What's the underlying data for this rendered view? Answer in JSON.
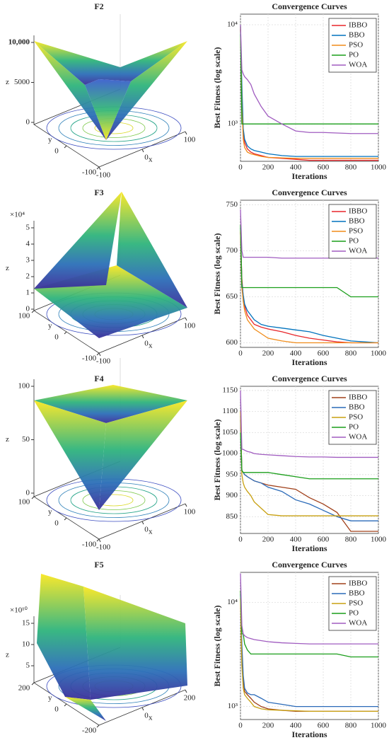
{
  "chart_data": [
    {
      "type": "surface",
      "title": "F2",
      "xlabel": "x",
      "ylabel": "y",
      "zlabel": "z",
      "zlim": [
        0,
        10000
      ],
      "zticks": [
        0,
        5000,
        {
          "value": 10000,
          "label": "10,000"
        }
      ],
      "xticks": [
        -100,
        0,
        100
      ],
      "yticks": [
        -100,
        0
      ]
    },
    {
      "type": "line",
      "title": "Convergence Curves",
      "xlabel": "Iterations",
      "ylabel": "Best Fitness (log scale)",
      "log_y": true,
      "grid": true,
      "legend": "upper right",
      "x": [
        0,
        10,
        20,
        30,
        50,
        75,
        100,
        150,
        200,
        300,
        400,
        500,
        600,
        700,
        800,
        900,
        1000
      ],
      "xlim": [
        0,
        1000
      ],
      "xticks": [
        0,
        200,
        400,
        600,
        800,
        1000
      ],
      "ylim": [
        420,
        12800
      ],
      "yticks": [
        {
          "value": 1000,
          "label": "10³"
        },
        {
          "value": 10000,
          "label": "10⁴"
        }
      ],
      "series": [
        {
          "name": "IBBO",
          "color": "#e8262a",
          "values": [
            9000,
            2000,
            800,
            650,
            560,
            520,
            500,
            480,
            460,
            450,
            440,
            430,
            430,
            430,
            430,
            430,
            430
          ]
        },
        {
          "name": "BBO",
          "color": "#0072bd",
          "values": [
            8000,
            2500,
            900,
            700,
            600,
            560,
            540,
            520,
            500,
            480,
            470,
            470,
            470,
            470,
            470,
            470,
            470
          ]
        },
        {
          "name": "PSO",
          "color": "#f08c1a",
          "values": [
            9500,
            1500,
            700,
            580,
            520,
            500,
            490,
            470,
            460,
            455,
            450,
            450,
            450,
            450,
            450,
            450,
            450
          ]
        },
        {
          "name": "PO",
          "color": "#1a9e1a",
          "values": [
            9800,
            1000,
            1000,
            1000,
            1000,
            1000,
            1000,
            1000,
            1000,
            1000,
            1000,
            1000,
            1000,
            1000,
            1000,
            1000,
            1000
          ]
        },
        {
          "name": "WOA",
          "color": "#a05cc0",
          "values": [
            10000,
            3500,
            3200,
            3000,
            2800,
            2500,
            2000,
            1500,
            1200,
            1000,
            850,
            820,
            820,
            810,
            800,
            800,
            800
          ]
        }
      ]
    },
    {
      "type": "surface",
      "title": "F3",
      "xlabel": "x",
      "ylabel": "y",
      "zlabel": "z",
      "scale_label": "×10⁴",
      "zlim": [
        0,
        5
      ],
      "zticks": [
        0,
        1,
        2,
        3,
        4,
        5
      ],
      "xticks": [
        -100,
        0,
        100
      ],
      "yticks": [
        -100,
        0,
        100
      ]
    },
    {
      "type": "line",
      "title": "Convergence Curves",
      "xlabel": "Iterations",
      "ylabel": "Best Fitness (log scale)",
      "log_y": false,
      "grid": true,
      "legend": "upper right",
      "x": [
        0,
        10,
        20,
        30,
        50,
        75,
        100,
        150,
        200,
        300,
        400,
        500,
        600,
        700,
        800,
        900,
        1000
      ],
      "xlim": [
        0,
        1000
      ],
      "xticks": [
        0,
        200,
        400,
        600,
        800,
        1000
      ],
      "ylim": [
        595,
        755
      ],
      "yticks": [
        600,
        650,
        700,
        750
      ],
      "series": [
        {
          "name": "IBBO",
          "color": "#e8262a",
          "values": [
            720,
            670,
            650,
            640,
            630,
            625,
            620,
            617,
            615,
            612,
            608,
            605,
            603,
            601,
            600,
            600,
            600
          ]
        },
        {
          "name": "BBO",
          "color": "#0072bd",
          "values": [
            725,
            665,
            652,
            642,
            635,
            630,
            625,
            620,
            618,
            616,
            614,
            612,
            608,
            605,
            602,
            601,
            600
          ]
        },
        {
          "name": "PSO",
          "color": "#f08c1a",
          "values": [
            722,
            660,
            645,
            635,
            625,
            620,
            615,
            610,
            605,
            602,
            600,
            600,
            600,
            600,
            600,
            600,
            600
          ]
        },
        {
          "name": "PO",
          "color": "#1a9e1a",
          "values": [
            728,
            660,
            660,
            660,
            660,
            660,
            660,
            660,
            660,
            660,
            660,
            660,
            660,
            660,
            650,
            650,
            650
          ]
        },
        {
          "name": "WOA",
          "color": "#a05cc0",
          "values": [
            745,
            700,
            693,
            693,
            693,
            693,
            693,
            693,
            693,
            692,
            692,
            692,
            692,
            692,
            692,
            692,
            692
          ]
        }
      ]
    },
    {
      "type": "surface",
      "title": "F4",
      "xlabel": "x",
      "ylabel": "y",
      "zlabel": "z",
      "zlim": [
        0,
        100
      ],
      "zticks": [
        0,
        50,
        100
      ],
      "xticks": [
        -100,
        0,
        100
      ],
      "yticks": [
        -100,
        0,
        100
      ]
    },
    {
      "type": "line",
      "title": "Convergence Curves",
      "xlabel": "Iterations",
      "ylabel": "Best Fitness (log scale)",
      "log_y": false,
      "grid": true,
      "legend": "upper right",
      "x": [
        0,
        10,
        20,
        30,
        50,
        75,
        100,
        150,
        200,
        300,
        400,
        500,
        600,
        700,
        800,
        900,
        1000
      ],
      "xlim": [
        0,
        1000
      ],
      "xticks": [
        0,
        200,
        400,
        600,
        800,
        1000
      ],
      "ylim": [
        810,
        1160
      ],
      "yticks": [
        850,
        900,
        950,
        1000,
        1050,
        1100,
        1150
      ],
      "series": [
        {
          "name": "IBBO",
          "color": "#a0401a",
          "values": [
            1080,
            960,
            955,
            950,
            945,
            940,
            935,
            930,
            925,
            920,
            915,
            895,
            880,
            860,
            815,
            815,
            815
          ]
        },
        {
          "name": "BBO",
          "color": "#2a6ab8",
          "values": [
            1090,
            960,
            955,
            950,
            945,
            940,
            935,
            930,
            920,
            910,
            890,
            880,
            865,
            850,
            840,
            840,
            840
          ]
        },
        {
          "name": "PSO",
          "color": "#c8a010",
          "values": [
            1100,
            950,
            930,
            920,
            910,
            900,
            885,
            870,
            855,
            852,
            852,
            852,
            852,
            852,
            852,
            852,
            852
          ]
        },
        {
          "name": "PO",
          "color": "#1a9e1a",
          "values": [
            1050,
            960,
            955,
            955,
            955,
            955,
            955,
            955,
            955,
            950,
            945,
            940,
            940,
            940,
            940,
            940,
            940
          ]
        },
        {
          "name": "WOA",
          "color": "#a05cc0",
          "values": [
            1150,
            1010,
            1010,
            1008,
            1005,
            1003,
            1000,
            998,
            997,
            995,
            993,
            992,
            992,
            991,
            991,
            991,
            991
          ]
        }
      ]
    },
    {
      "type": "surface",
      "title": "F5",
      "xlabel": "x",
      "ylabel": "y",
      "zlabel": "z",
      "scale_label": "×10¹⁰",
      "zlim": [
        0,
        15
      ],
      "zticks": [
        5,
        10,
        15
      ],
      "xticks": [
        0,
        200
      ],
      "yticks": [
        -200,
        0,
        200
      ]
    },
    {
      "type": "line",
      "title": "Convergence Curves",
      "xlabel": "Iterations",
      "ylabel": "Best Fitness (log scale)",
      "log_y": true,
      "grid": true,
      "legend": "upper right",
      "x": [
        0,
        10,
        20,
        30,
        50,
        75,
        100,
        150,
        200,
        300,
        400,
        500,
        600,
        700,
        800,
        900,
        1000
      ],
      "xlim": [
        0,
        1000
      ],
      "xticks": [
        0,
        200,
        400,
        600,
        800,
        1000
      ],
      "ylim": [
        750,
        19500
      ],
      "yticks": [
        {
          "value": 1000,
          "label": "10³"
        },
        {
          "value": 10000,
          "label": "10⁴"
        }
      ],
      "series": [
        {
          "name": "IBBO",
          "color": "#a0401a",
          "values": [
            13000,
            3000,
            1800,
            1400,
            1300,
            1200,
            1100,
            1000,
            950,
            920,
            900,
            900,
            900,
            900,
            900,
            900,
            900
          ]
        },
        {
          "name": "BBO",
          "color": "#2a6ab8",
          "values": [
            12000,
            4000,
            2000,
            1500,
            1350,
            1300,
            1300,
            1200,
            1100,
            1050,
            1000,
            1000,
            1000,
            1000,
            1000,
            1000,
            1000
          ]
        },
        {
          "name": "PSO",
          "color": "#c8a010",
          "values": [
            11000,
            2500,
            1500,
            1300,
            1200,
            1100,
            1000,
            950,
            930,
            920,
            910,
            900,
            900,
            900,
            900,
            900,
            900
          ]
        },
        {
          "name": "PO",
          "color": "#1a9e1a",
          "values": [
            13000,
            5000,
            5000,
            4000,
            3500,
            3200,
            3200,
            3200,
            3200,
            3200,
            3200,
            3200,
            3200,
            3200,
            3000,
            3000,
            3000
          ]
        },
        {
          "name": "WOA",
          "color": "#a05cc0",
          "values": [
            19000,
            6000,
            5000,
            4800,
            4600,
            4500,
            4400,
            4300,
            4200,
            4100,
            4050,
            4000,
            4000,
            4000,
            4000,
            4000,
            4000
          ]
        }
      ]
    }
  ]
}
